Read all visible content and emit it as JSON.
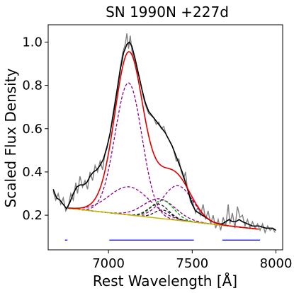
{
  "chart_data": {
    "type": "line",
    "title": "SN 1990N  +227d",
    "xlabel": "Rest Wavelength [Å]",
    "ylabel": "Scaled Flux Density",
    "xlim": [
      6640,
      8040
    ],
    "ylim": [
      0.04,
      1.08
    ],
    "xticks": [
      7000,
      7500,
      8000
    ],
    "xtick_labels": [
      "7000",
      "7500",
      "8000"
    ],
    "yticks": [
      0.2,
      0.4,
      0.6,
      0.8,
      1.0
    ],
    "ytick_labels": [
      "0.2",
      "0.4",
      "0.6",
      "0.8",
      "1.0"
    ],
    "grid": false,
    "legend": "none",
    "continuum": {
      "x": [
        6760,
        7900
      ],
      "y": [
        0.232,
        0.135
      ]
    },
    "observed": {
      "color": "#808080",
      "points": [
        [
          6670,
          0.31
        ],
        [
          6685,
          0.27
        ],
        [
          6700,
          0.3
        ],
        [
          6715,
          0.25
        ],
        [
          6730,
          0.28
        ],
        [
          6745,
          0.22
        ],
        [
          6760,
          0.24
        ],
        [
          6775,
          0.3
        ],
        [
          6790,
          0.27
        ],
        [
          6805,
          0.35
        ],
        [
          6815,
          0.3
        ],
        [
          6830,
          0.38
        ],
        [
          6845,
          0.33
        ],
        [
          6860,
          0.36
        ],
        [
          6875,
          0.32
        ],
        [
          6890,
          0.4
        ],
        [
          6905,
          0.36
        ],
        [
          6920,
          0.43
        ],
        [
          6935,
          0.4
        ],
        [
          6950,
          0.45
        ],
        [
          6965,
          0.41
        ],
        [
          6980,
          0.49
        ],
        [
          6995,
          0.53
        ],
        [
          7010,
          0.58
        ],
        [
          7025,
          0.66
        ],
        [
          7040,
          0.73
        ],
        [
          7055,
          0.8
        ],
        [
          7070,
          0.88
        ],
        [
          7085,
          0.95
        ],
        [
          7100,
          0.99
        ],
        [
          7110,
          1.04
        ],
        [
          7120,
          0.97
        ],
        [
          7130,
          1.03
        ],
        [
          7140,
          0.96
        ],
        [
          7150,
          0.93
        ],
        [
          7165,
          0.88
        ],
        [
          7180,
          0.85
        ],
        [
          7195,
          0.8
        ],
        [
          7210,
          0.74
        ],
        [
          7225,
          0.7
        ],
        [
          7240,
          0.67
        ],
        [
          7255,
          0.66
        ],
        [
          7270,
          0.65
        ],
        [
          7285,
          0.62
        ],
        [
          7300,
          0.63
        ],
        [
          7315,
          0.6
        ],
        [
          7330,
          0.61
        ],
        [
          7345,
          0.57
        ],
        [
          7360,
          0.55
        ],
        [
          7375,
          0.53
        ],
        [
          7390,
          0.5
        ],
        [
          7405,
          0.45
        ],
        [
          7420,
          0.46
        ],
        [
          7435,
          0.4
        ],
        [
          7450,
          0.37
        ],
        [
          7460,
          0.4
        ],
        [
          7470,
          0.33
        ],
        [
          7480,
          0.3
        ],
        [
          7490,
          0.26
        ],
        [
          7500,
          0.27
        ],
        [
          7510,
          0.24
        ],
        [
          7520,
          0.21
        ],
        [
          7535,
          0.24
        ],
        [
          7550,
          0.2
        ],
        [
          7565,
          0.25
        ],
        [
          7580,
          0.18
        ],
        [
          7595,
          0.22
        ],
        [
          7610,
          0.16
        ],
        [
          7625,
          0.2
        ],
        [
          7640,
          0.14
        ],
        [
          7655,
          0.18
        ],
        [
          7670,
          0.13
        ],
        [
          7685,
          0.19
        ],
        [
          7700,
          0.15
        ],
        [
          7715,
          0.25
        ],
        [
          7725,
          0.16
        ],
        [
          7740,
          0.21
        ],
        [
          7755,
          0.14
        ],
        [
          7770,
          0.24
        ],
        [
          7785,
          0.19
        ],
        [
          7800,
          0.2
        ],
        [
          7815,
          0.15
        ],
        [
          7830,
          0.18
        ],
        [
          7845,
          0.14
        ],
        [
          7860,
          0.17
        ],
        [
          7875,
          0.14
        ],
        [
          7890,
          0.16
        ],
        [
          7905,
          0.13
        ],
        [
          7920,
          0.16
        ],
        [
          7935,
          0.12
        ],
        [
          7950,
          0.15
        ],
        [
          7965,
          0.13
        ],
        [
          7980,
          0.14
        ],
        [
          7995,
          0.12
        ]
      ]
    },
    "smoothed": {
      "color": "#000000",
      "points": [
        [
          6670,
          0.32
        ],
        [
          6690,
          0.28
        ],
        [
          6710,
          0.27
        ],
        [
          6730,
          0.25
        ],
        [
          6750,
          0.23
        ],
        [
          6770,
          0.26
        ],
        [
          6790,
          0.3
        ],
        [
          6810,
          0.33
        ],
        [
          6830,
          0.34
        ],
        [
          6850,
          0.34
        ],
        [
          6870,
          0.35
        ],
        [
          6890,
          0.38
        ],
        [
          6910,
          0.4
        ],
        [
          6930,
          0.41
        ],
        [
          6950,
          0.43
        ],
        [
          6970,
          0.46
        ],
        [
          6990,
          0.51
        ],
        [
          7010,
          0.58
        ],
        [
          7030,
          0.67
        ],
        [
          7050,
          0.77
        ],
        [
          7070,
          0.87
        ],
        [
          7090,
          0.95
        ],
        [
          7110,
          0.99
        ],
        [
          7125,
          1.0
        ],
        [
          7140,
          0.98
        ],
        [
          7160,
          0.92
        ],
        [
          7180,
          0.85
        ],
        [
          7200,
          0.78
        ],
        [
          7220,
          0.72
        ],
        [
          7240,
          0.68
        ],
        [
          7260,
          0.66
        ],
        [
          7280,
          0.64
        ],
        [
          7300,
          0.62
        ],
        [
          7320,
          0.6
        ],
        [
          7340,
          0.58
        ],
        [
          7360,
          0.55
        ],
        [
          7380,
          0.52
        ],
        [
          7400,
          0.48
        ],
        [
          7420,
          0.44
        ],
        [
          7440,
          0.4
        ],
        [
          7460,
          0.35
        ],
        [
          7480,
          0.3
        ],
        [
          7500,
          0.25
        ],
        [
          7520,
          0.22
        ],
        [
          7540,
          0.21
        ],
        [
          7560,
          0.2
        ],
        [
          7580,
          0.19
        ],
        [
          7600,
          0.18
        ],
        [
          7620,
          0.17
        ],
        [
          7640,
          0.165
        ],
        [
          7660,
          0.16
        ],
        [
          7680,
          0.16
        ],
        [
          7700,
          0.17
        ],
        [
          7720,
          0.18
        ],
        [
          7740,
          0.17
        ],
        [
          7760,
          0.17
        ],
        [
          7780,
          0.18
        ],
        [
          7800,
          0.17
        ],
        [
          7830,
          0.16
        ],
        [
          7860,
          0.15
        ],
        [
          7900,
          0.15
        ],
        [
          7940,
          0.14
        ],
        [
          7980,
          0.14
        ],
        [
          8000,
          0.13
        ]
      ]
    },
    "fit": {
      "color": "#e00000",
      "x_range": [
        6760,
        7900
      ],
      "sample_step": 8
    },
    "components": [
      {
        "color": "#8b008b",
        "center": 7120,
        "sigma": 80,
        "amplitude": 0.61
      },
      {
        "color": "#8b008b",
        "center": 7125,
        "sigma": 120,
        "amplitude": 0.13
      },
      {
        "color": "#8b008b",
        "center": 7415,
        "sigma": 90,
        "amplitude": 0.16
      },
      {
        "color": "#8b008b",
        "center": 7305,
        "sigma": 95,
        "amplitude": 0.09
      },
      {
        "color": "#009900",
        "center": 7325,
        "sigma": 65,
        "amplitude": 0.085
      },
      {
        "color": "#1a1a1a",
        "center": 7300,
        "sigma": 60,
        "amplitude": 0.065
      },
      {
        "color": "#1a1a1a",
        "center": 7325,
        "sigma": 50,
        "amplitude": 0.04
      }
    ],
    "fit_regions": {
      "color": "#0000ff",
      "y": 0.085,
      "ranges": [
        [
          6740,
          6755
        ],
        [
          7005,
          7510
        ],
        [
          7680,
          7905
        ]
      ]
    },
    "colors": {
      "continuum": "#c8b400",
      "axes": "#000000"
    }
  }
}
